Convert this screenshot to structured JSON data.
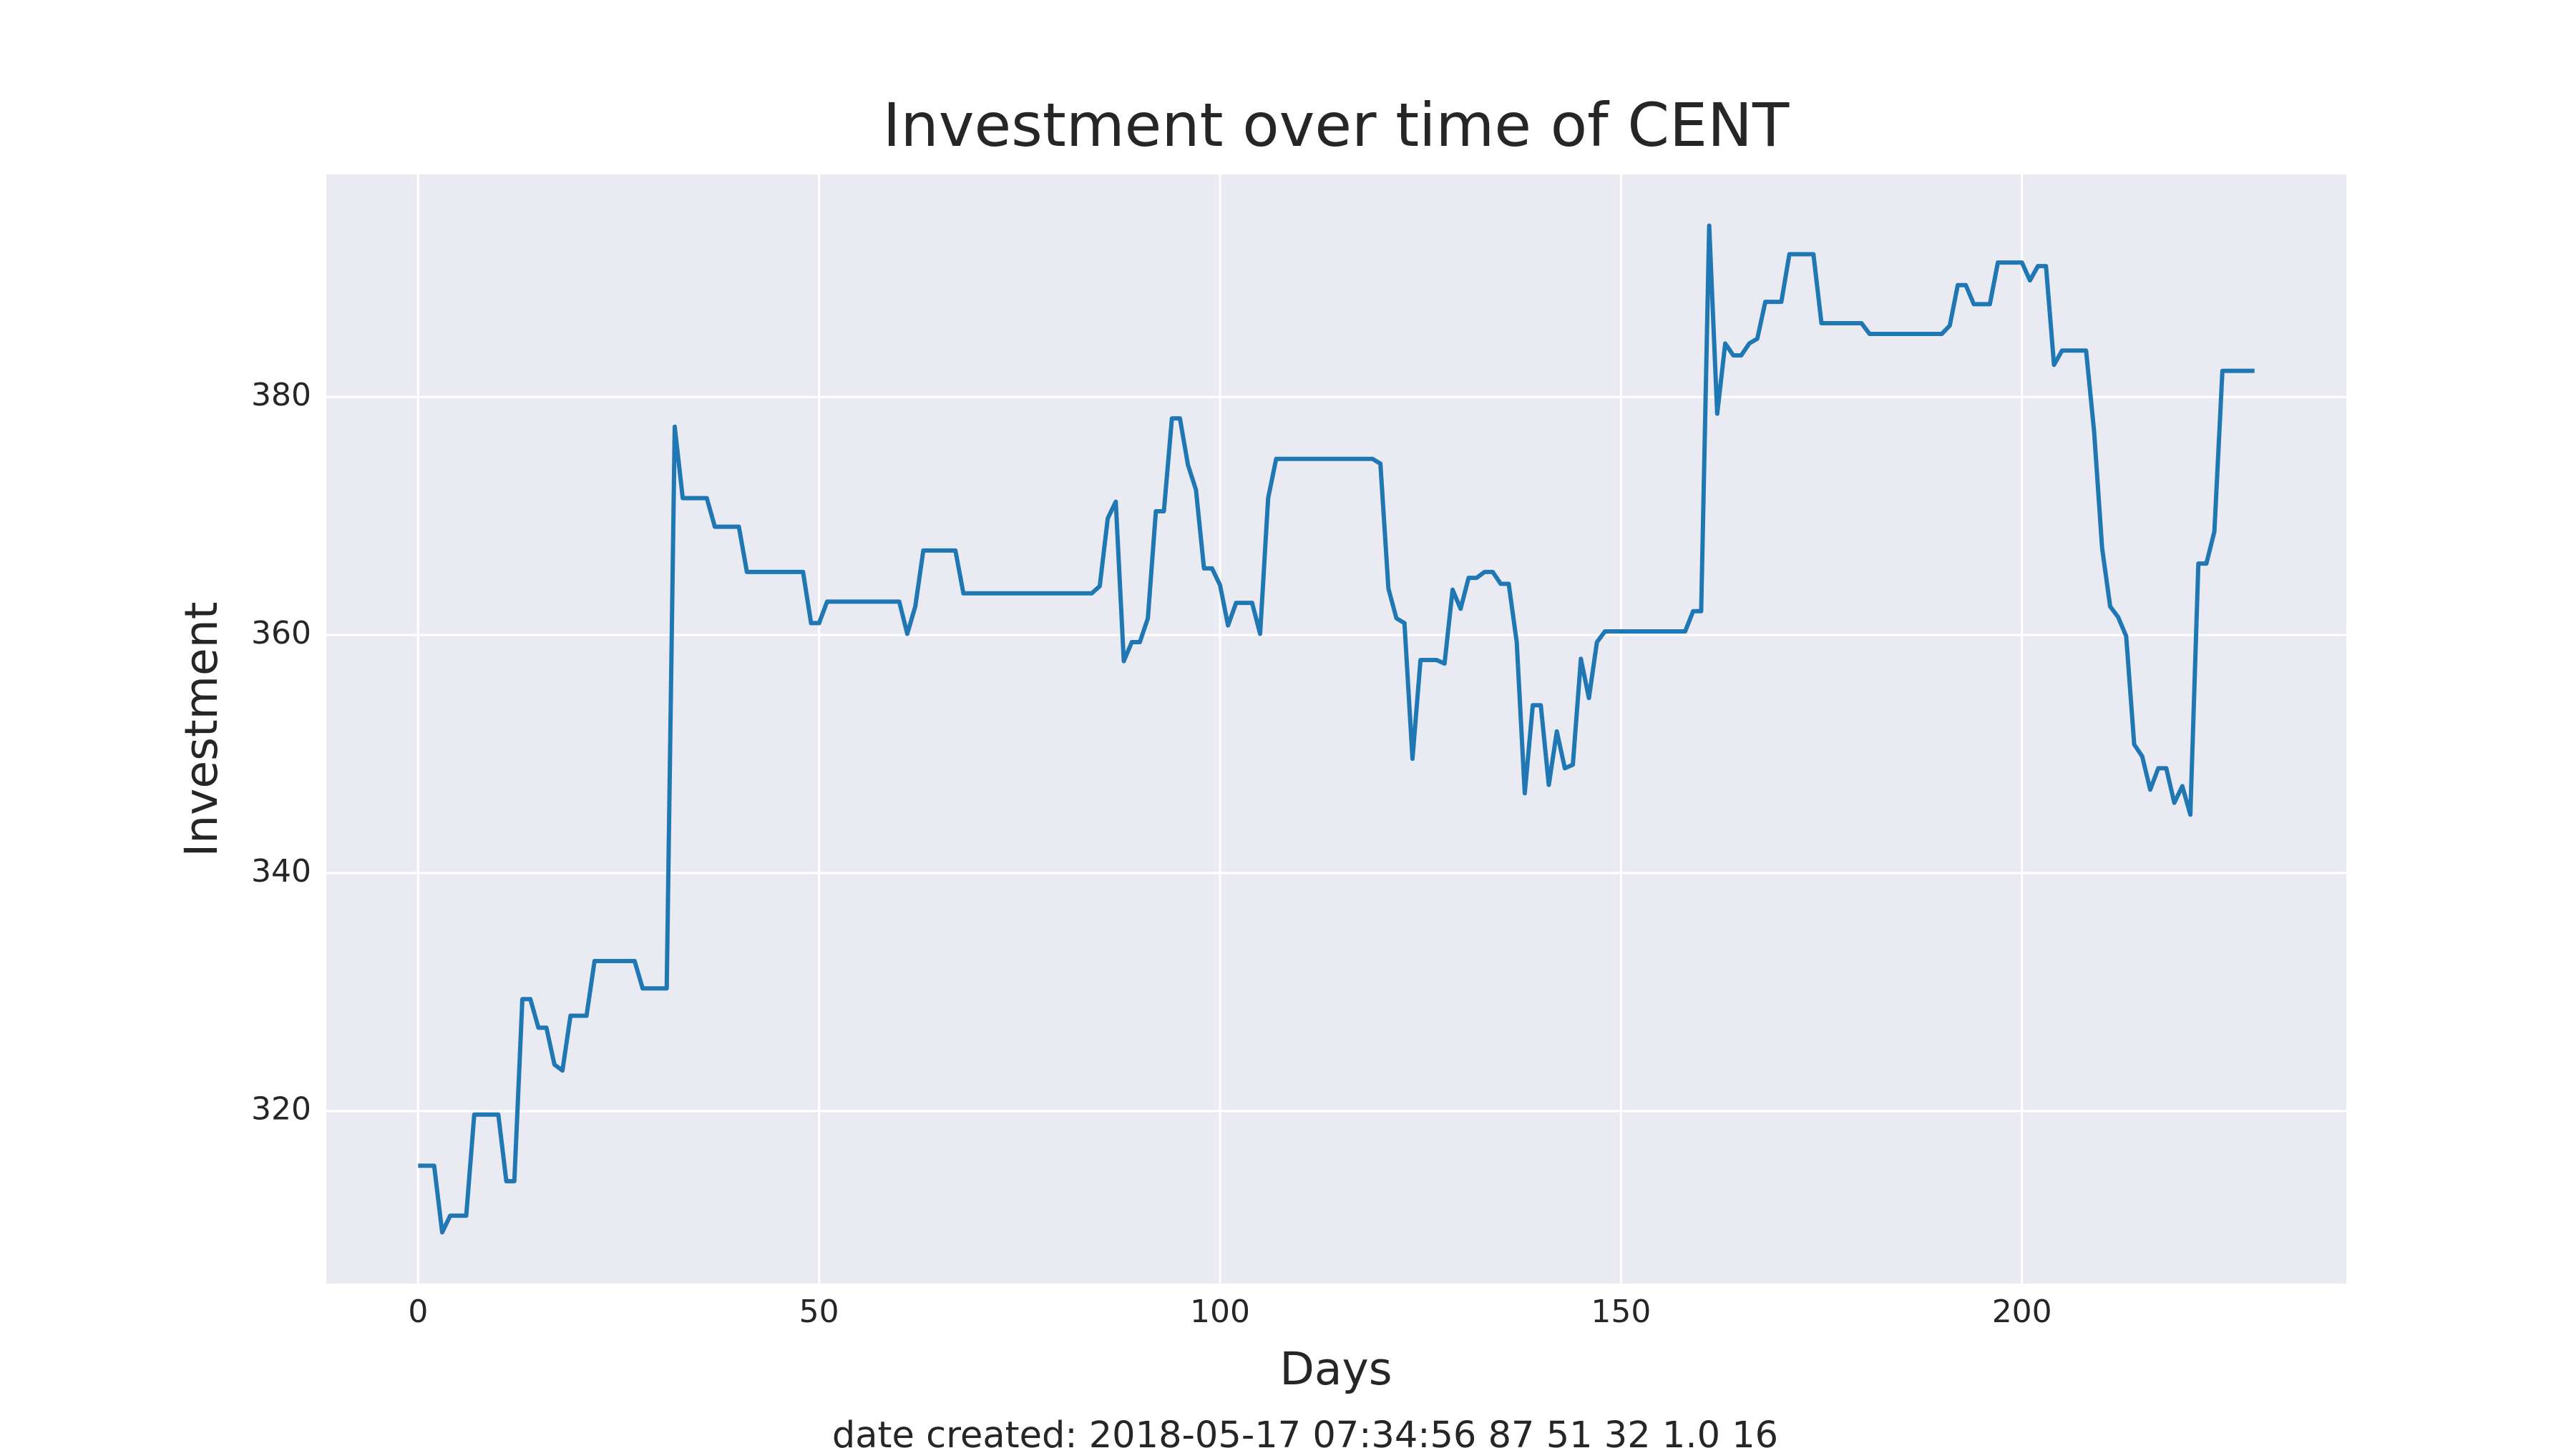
{
  "chart_data": {
    "type": "line",
    "title": "Investment over time of CENT",
    "xlabel": "Days",
    "ylabel": "Investment",
    "footer": "date created: 2018-05-17 07:34:56 87 51 32 1.0 16",
    "x": [
      0,
      2,
      3,
      4,
      6,
      7,
      10,
      11,
      12,
      13,
      14,
      15,
      16,
      17,
      18,
      19,
      21,
      22,
      27,
      28,
      31,
      32,
      33,
      36,
      37,
      40,
      41,
      48,
      49,
      50,
      51,
      60,
      61,
      62,
      63,
      67,
      68,
      84,
      85,
      86,
      87,
      88,
      89,
      90,
      91,
      92,
      93,
      94,
      95,
      96,
      97,
      98,
      99,
      100,
      101,
      102,
      104,
      105,
      106,
      107,
      119,
      120,
      121,
      122,
      123,
      124,
      125,
      127,
      128,
      129,
      130,
      131,
      132,
      133,
      134,
      135,
      136,
      137,
      138,
      139,
      140,
      141,
      142,
      143,
      144,
      145,
      146,
      147,
      148,
      158,
      159,
      160,
      161,
      162,
      163,
      164,
      165,
      166,
      167,
      168,
      170,
      171,
      174,
      175,
      180,
      181,
      190,
      191,
      192,
      193,
      194,
      196,
      197,
      200,
      201,
      202,
      203,
      204,
      205,
      208,
      209,
      210,
      211,
      212,
      213,
      214,
      215,
      216,
      217,
      218,
      219,
      220,
      221,
      222,
      223,
      224,
      225,
      229
    ],
    "values": [
      315.4,
      315.4,
      309.8,
      311.2,
      311.2,
      319.7,
      319.7,
      314.1,
      314.1,
      329.4,
      329.4,
      327.0,
      327.0,
      323.9,
      323.4,
      328.0,
      328.0,
      332.6,
      332.6,
      330.3,
      330.3,
      377.5,
      371.5,
      371.5,
      369.1,
      369.1,
      365.3,
      365.3,
      361.0,
      361.0,
      362.8,
      362.8,
      360.1,
      362.4,
      367.1,
      367.1,
      363.5,
      363.5,
      364.1,
      369.8,
      371.2,
      357.8,
      359.4,
      359.4,
      361.4,
      370.4,
      370.4,
      378.2,
      378.2,
      374.3,
      372.2,
      365.6,
      365.6,
      364.2,
      360.8,
      362.7,
      362.7,
      360.1,
      371.5,
      374.8,
      374.8,
      374.4,
      363.9,
      361.4,
      361.0,
      349.6,
      357.9,
      357.9,
      357.6,
      363.8,
      362.2,
      364.8,
      364.8,
      365.3,
      365.3,
      364.3,
      364.3,
      359.4,
      346.7,
      354.1,
      354.1,
      347.4,
      351.9,
      348.8,
      349.1,
      358.0,
      354.7,
      359.4,
      360.3,
      360.3,
      362.0,
      362.0,
      394.4,
      378.6,
      384.5,
      383.5,
      383.5,
      384.5,
      384.9,
      388.0,
      388.0,
      392.0,
      392.0,
      386.2,
      386.2,
      385.3,
      385.3,
      386.0,
      389.4,
      389.4,
      387.8,
      387.8,
      391.3,
      391.3,
      389.8,
      391.0,
      391.0,
      382.7,
      383.9,
      383.9,
      377.1,
      367.3,
      362.4,
      361.5,
      359.9,
      350.8,
      349.8,
      347.0,
      348.8,
      348.8,
      345.9,
      347.3,
      344.9,
      366.0,
      366.0,
      368.7,
      382.2,
      382.2
    ],
    "color": "#1f77b4",
    "xlim": [
      -11.45,
      240.45
    ],
    "ylim": [
      305.5,
      398.7
    ],
    "xticks": [
      0,
      50,
      100,
      150,
      200
    ],
    "yticks": [
      320,
      340,
      360,
      380
    ],
    "grid": true
  }
}
